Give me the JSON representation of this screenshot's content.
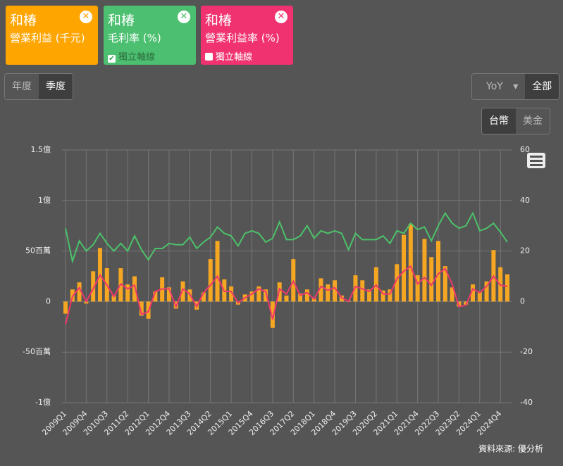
{
  "chart_data": {
    "type": "combo",
    "categories": [
      "2009Q1",
      null,
      null,
      "2009Q4",
      null,
      null,
      "2010Q3",
      null,
      null,
      "2011Q2",
      null,
      null,
      "2012Q1",
      null,
      null,
      "2012Q4",
      null,
      null,
      "2013Q3",
      null,
      null,
      "2014Q2",
      null,
      null,
      "2015Q1",
      null,
      null,
      "2015Q4",
      null,
      null,
      "2016Q3",
      null,
      null,
      "2017Q2",
      null,
      null,
      "2018Q1",
      null,
      null,
      "2018Q4",
      null,
      null,
      "2019Q3",
      null,
      null,
      "2020Q2",
      null,
      null,
      "2021Q1",
      null,
      null,
      "2021Q4",
      null,
      null,
      "2022Q3",
      null,
      null,
      "2023Q2",
      null,
      null,
      "2024Q1",
      null,
      null,
      "2024Q4",
      null
    ],
    "series": [
      {
        "name": "營業利益 (千元)",
        "type": "bar",
        "color": "#f5a623",
        "axis": "y",
        "values": [
          -12000,
          12000,
          19000,
          -2000,
          30000,
          53000,
          33000,
          6000,
          33000,
          17000,
          25000,
          -14000,
          -17000,
          10000,
          24000,
          14000,
          -7000,
          20000,
          12000,
          -8000,
          9000,
          42000,
          60000,
          22000,
          15000,
          -3000,
          7000,
          10000,
          15000,
          12000,
          -26000,
          19000,
          6000,
          42000,
          8000,
          12000,
          3000,
          23000,
          17000,
          21000,
          6000,
          1000,
          26000,
          21000,
          12000,
          34000,
          11000,
          12000,
          37000,
          66000,
          77000,
          26000,
          62000,
          44000,
          60000,
          35000,
          14000,
          -5000,
          -3000,
          17000,
          10000,
          20000,
          51000,
          34000,
          27000
        ]
      },
      {
        "name": "毛利率 (%)",
        "type": "line",
        "color": "#4cc16a",
        "axis": "y2",
        "checkbox": "獨立軸線",
        "checked": true,
        "values": [
          29,
          16,
          24,
          20,
          22.5,
          27,
          23,
          20,
          23,
          20,
          26,
          20.5,
          16.5,
          21,
          21,
          23,
          22.5,
          22.5,
          25.5,
          21,
          23.5,
          25.5,
          29.5,
          27,
          26,
          22,
          27,
          28,
          27,
          23.5,
          25,
          31.5,
          24.5,
          24.5,
          26,
          30,
          25,
          28,
          27,
          28,
          27,
          20.5,
          27,
          24.5,
          24.5,
          24.5,
          26,
          23,
          28,
          27,
          31,
          28.5,
          29.5,
          24,
          30,
          35,
          31,
          29,
          30,
          35,
          28,
          29,
          31,
          27.5,
          23.5
        ]
      },
      {
        "name": "營業利益率 (%)",
        "type": "line",
        "color": "#f0386b",
        "axis": "y2",
        "checkbox": "獨立軸線",
        "checked": false,
        "values": [
          -9,
          2,
          5.5,
          0,
          5,
          10.5,
          6.5,
          2,
          7,
          5,
          6.5,
          -5,
          -4,
          4,
          5,
          5,
          -2,
          5,
          3,
          -2,
          3.5,
          6.5,
          10,
          4,
          4,
          -0.5,
          1.5,
          3,
          5,
          4,
          -7,
          5,
          3,
          8,
          2.5,
          3.5,
          1,
          6,
          4.5,
          5.5,
          1.5,
          0,
          6,
          5,
          4,
          6.5,
          3,
          3,
          9,
          12,
          14,
          7,
          9.5,
          6.5,
          11,
          13,
          7,
          -2,
          -1.5,
          5,
          3.5,
          6,
          10,
          6.5,
          6
        ]
      }
    ],
    "ylim": [
      -100000,
      150000
    ],
    "yticks": [
      {
        "value": -100000,
        "label": "-1億"
      },
      {
        "value": -50000,
        "label": "-50百萬"
      },
      0,
      {
        "value": 50000,
        "label": "50百萬"
      },
      {
        "value": 100000,
        "label": "1億"
      },
      {
        "value": 150000,
        "label": "1.5億"
      }
    ],
    "y2lim": [
      -40,
      60
    ],
    "y2ticks": [
      -40,
      -20,
      0,
      20,
      40,
      60
    ],
    "grid": true,
    "source": "資料來源: 優分析"
  },
  "ui": {
    "company": "和椿",
    "period_buttons": [
      "年度",
      "季度"
    ],
    "period_active": 1,
    "compare": "YoY",
    "range": "全部",
    "currency_buttons": [
      "台幣",
      "美金"
    ],
    "currency_active": 0
  }
}
